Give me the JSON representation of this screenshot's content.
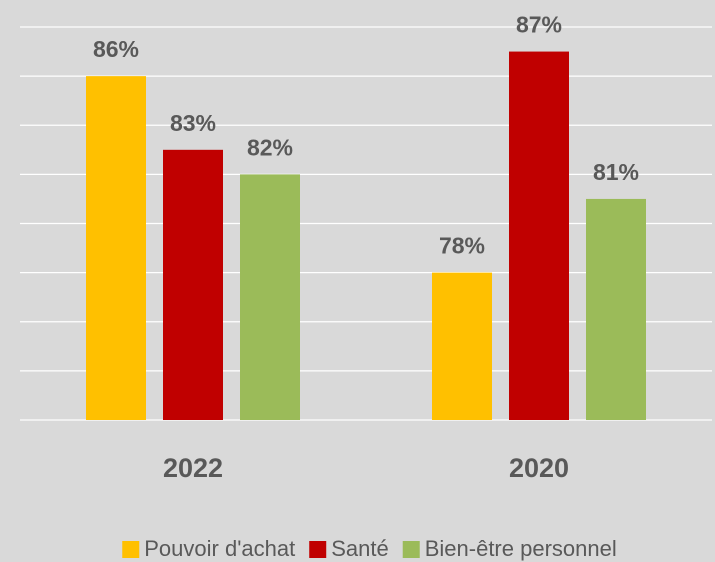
{
  "chart_data": {
    "type": "bar",
    "categories": [
      "2022",
      "2020"
    ],
    "series": [
      {
        "name": "Pouvoir d'achat",
        "color": "#ffc000",
        "values": [
          86,
          78
        ],
        "value_labels": [
          "86%",
          "78%"
        ]
      },
      {
        "name": "Santé",
        "color": "#c00000",
        "values": [
          83,
          87
        ],
        "value_labels": [
          "83%",
          "87%"
        ]
      },
      {
        "name": "Bien-être personnel",
        "color": "#9bbb59",
        "values": [
          82,
          81
        ],
        "value_labels": [
          "82%",
          "81%"
        ]
      }
    ],
    "ylim": [
      72,
      88
    ],
    "yticks": [
      72,
      74,
      76,
      78,
      80,
      82,
      84,
      86,
      88
    ],
    "grid": true,
    "legend": "bottom"
  }
}
